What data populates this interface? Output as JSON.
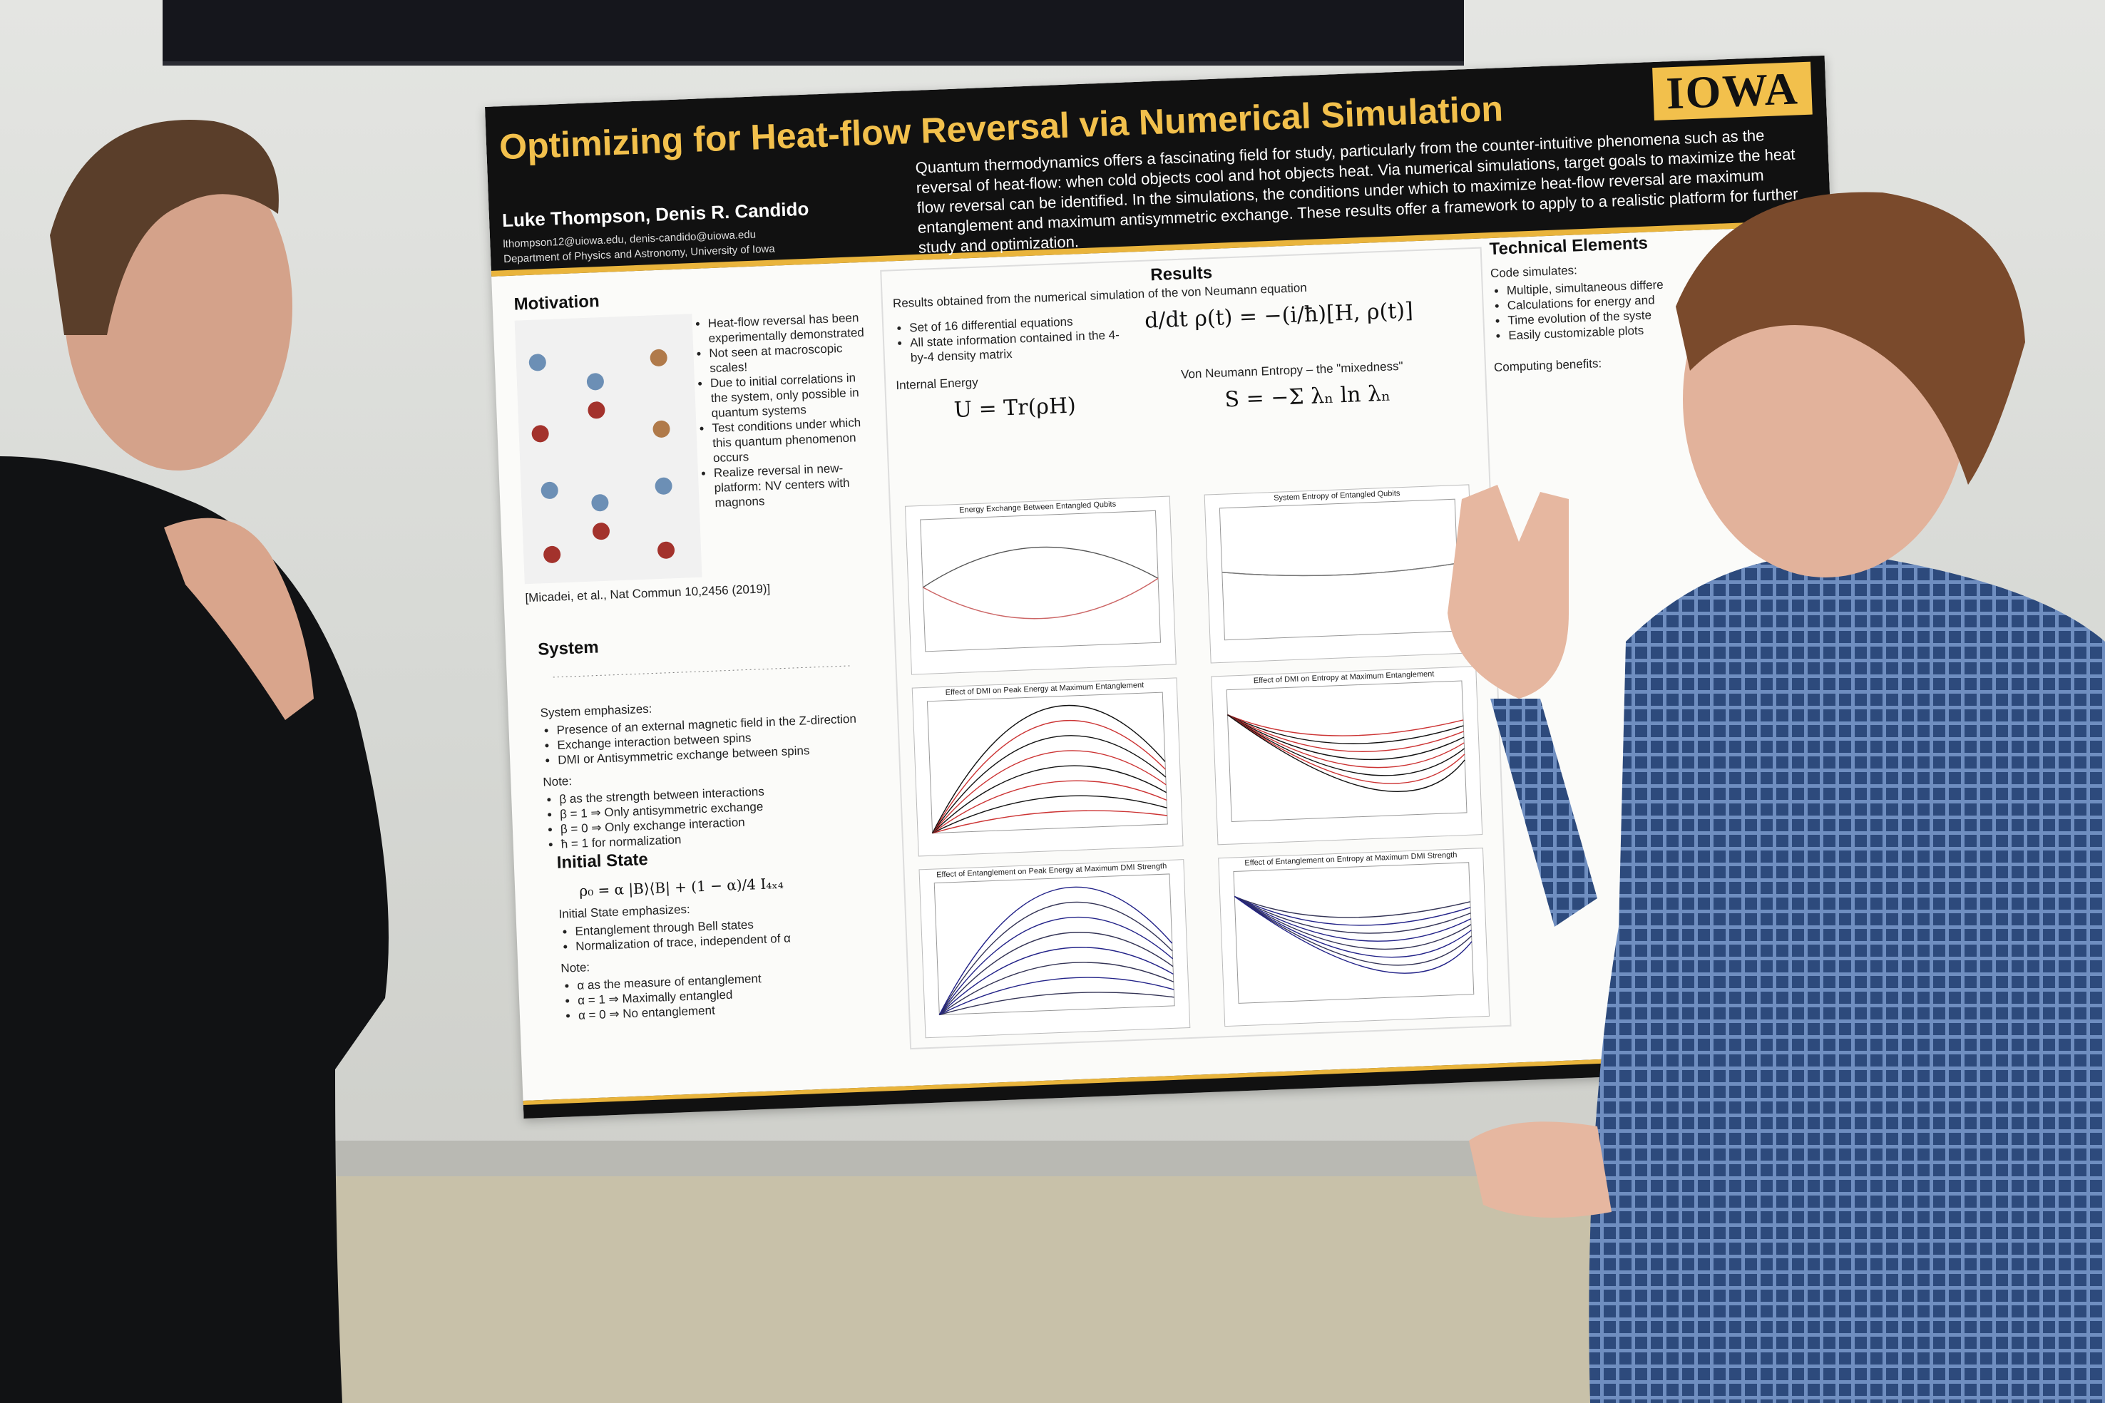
{
  "poster": {
    "header": {
      "title": "Optimizing for Heat-flow Reversal via Numerical Simulation",
      "logo": "IOWA",
      "authors": "Luke Thompson, Denis R. Candido",
      "emails": "lthompson12@uiowa.edu, denis-candido@uiowa.edu",
      "department": "Department of Physics and Astronomy, University of Iowa",
      "abstract": "Quantum thermodynamics offers a fascinating field for study, particularly from the counter-intuitive phenomena such as the reversal of heat-flow: when cold objects cool and hot objects heat. Via numerical simulations, target goals to maximize the heat flow reversal can be identified. In the simulations, the conditions under which to maximize heat-flow reversal are maximum entanglement and maximum antisymmetric exchange. These results offer a framework to apply to a realistic platform for further study and optimization."
    },
    "motivation": {
      "heading": "Motivation",
      "bullets": [
        "Heat-flow reversal has been experimentally demonstrated",
        "Not seen at macroscopic scales!",
        "Due to initial correlations in the system, only possible in quantum systems",
        "Test conditions under which this quantum phenomenon occurs",
        "Realize reversal in new-platform: NV centers with magnons"
      ],
      "citation": "[Micadei, et al., Nat Commun 10,2456 (2019)]"
    },
    "system": {
      "heading": "System",
      "emphasizes_label": "System emphasizes:",
      "emphasizes": [
        "Presence of an external magnetic field in the Z-direction",
        "Exchange interaction between spins",
        "DMI or Antisymmetric exchange between spins"
      ],
      "note_label": "Note:",
      "notes": [
        "β as the strength between interactions",
        "β = 1 ⇒ Only antisymmetric exchange",
        "β = 0 ⇒ Only exchange interaction",
        "ħ = 1 for normalization"
      ]
    },
    "initial_state": {
      "heading": "Initial State",
      "equation": "ρ₀ = α |B⟩⟨B| + (1 − α)/4 I₄ₓ₄",
      "emphasizes_label": "Initial State emphasizes:",
      "emphasizes": [
        "Entanglement through Bell states",
        "Normalization of trace, independent of α"
      ],
      "note_label": "Note:",
      "notes": [
        "α as the measure of entanglement",
        "α = 1 ⇒ Maximally entangled",
        "α = 0 ⇒ No entanglement"
      ]
    },
    "results": {
      "heading": "Results",
      "subtitle": "Results obtained from the numerical simulation of the von Neumann equation",
      "bullets": [
        "Set of 16 differential equations",
        "All state information contained in the 4-by-4 density matrix"
      ],
      "von_neumann": "d/dt ρ(t) = −(i/ħ)[H, ρ(t)]",
      "internal_energy_label": "Internal Energy",
      "internal_energy": "U = Tr(ρH)",
      "entropy_label": "Von Neumann Entropy – the \"mixedness\"",
      "entropy": "S = −Σ λₙ ln λₙ",
      "plot_titles": [
        "Energy Exchange Between Entangled Qubits",
        "System Entropy of Entangled Qubits",
        "Effect of DMI on Peak Energy at Maximum Entanglement",
        "Effect of DMI on Entropy at Maximum Entanglement",
        "Effect of Entanglement on Peak Energy at Maximum DMI Strength",
        "Effect of Entanglement on Entropy at Maximum DMI Strength"
      ]
    },
    "technical": {
      "heading": "Technical Elements",
      "code_label": "Code simulates:",
      "code_items": [
        "Multiple, simultaneous differe",
        "Calculations for energy and",
        "Time evolution of the syste",
        "Easily customizable plots"
      ],
      "benefits_label": "Computing benefits:"
    }
  }
}
